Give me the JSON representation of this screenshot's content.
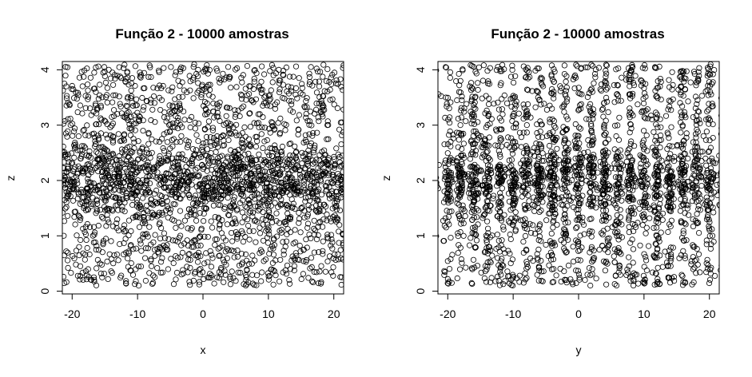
{
  "chart_data": [
    {
      "type": "scatter",
      "title": "Função 2 - 10000 amostras",
      "xlabel": "x",
      "ylabel": "z",
      "xlim": [
        -21.5,
        21.5
      ],
      "ylim": [
        -0.05,
        4.15
      ],
      "xticks": [
        -20,
        -10,
        0,
        10,
        20
      ],
      "yticks": [
        0,
        1,
        2,
        3,
        4
      ],
      "grid": false,
      "marker": "open-circle",
      "n_samples": 10000,
      "points_rendered": 2600,
      "z_range": [
        0.1,
        4.1
      ],
      "pattern": "uniform x over [-21.5, 21.5]; z spread over [0.1, 4.1] with a dense band around z ≈ 2"
    },
    {
      "type": "scatter",
      "title": "Função 2 - 10000 amostras",
      "xlabel": "y",
      "ylabel": "z",
      "xlim": [
        -21.5,
        21.5
      ],
      "ylim": [
        -0.05,
        4.15
      ],
      "xticks": [
        -20,
        -10,
        0,
        10,
        20
      ],
      "yticks": [
        0,
        1,
        2,
        3,
        4
      ],
      "grid": false,
      "marker": "open-circle",
      "n_samples": 10000,
      "points_rendered": 2600,
      "z_range": [
        0.1,
        4.1
      ],
      "stripe_spacing": 2,
      "pattern": "y concentrated in vertical stripes spaced ≈2 units apart; z spread over [0.1, 4.1] with a dense band around z ≈ 2"
    }
  ]
}
